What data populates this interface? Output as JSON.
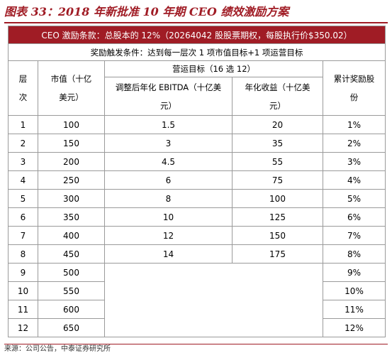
{
  "title": "图表 33：2018 年新批准 10 年期 CEO 绩效激励方案",
  "terms": "CEO 激励条款：总股本的 12%（20264042 股股票期权，每股执行价$350.02）",
  "trigger": "奖励触发条件：达到每一层次 1 项市值目标+1 项运营目标",
  "headers": {
    "level": "层次",
    "market_cap": "市值（十亿美元）",
    "ops": "营运目标（16 选 12）",
    "ebitda": "调整后年化 EBITDA（十亿美元）",
    "revenue": "年化收益（十亿美元）",
    "reward": "累计奖励股份"
  },
  "rows": [
    {
      "level": "1",
      "cap": "100",
      "ebitda": "1.5",
      "revenue": "20",
      "reward": "1%"
    },
    {
      "level": "2",
      "cap": "150",
      "ebitda": "3",
      "revenue": "35",
      "reward": "2%"
    },
    {
      "level": "3",
      "cap": "200",
      "ebitda": "4.5",
      "revenue": "55",
      "reward": "3%"
    },
    {
      "level": "4",
      "cap": "250",
      "ebitda": "6",
      "revenue": "75",
      "reward": "4%"
    },
    {
      "level": "5",
      "cap": "300",
      "ebitda": "8",
      "revenue": "100",
      "reward": "5%"
    },
    {
      "level": "6",
      "cap": "350",
      "ebitda": "10",
      "revenue": "125",
      "reward": "6%"
    },
    {
      "level": "7",
      "cap": "400",
      "ebitda": "12",
      "revenue": "150",
      "reward": "7%"
    },
    {
      "level": "8",
      "cap": "450",
      "ebitda": "14",
      "revenue": "175",
      "reward": "8%"
    },
    {
      "level": "9",
      "cap": "500",
      "ebitda": "",
      "revenue": "",
      "reward": "9%"
    },
    {
      "level": "10",
      "cap": "550",
      "ebitda": "",
      "revenue": "",
      "reward": "10%"
    },
    {
      "level": "11",
      "cap": "600",
      "ebitda": "",
      "revenue": "",
      "reward": "11%"
    },
    {
      "level": "12",
      "cap": "650",
      "ebitda": "",
      "revenue": "",
      "reward": "12%"
    }
  ],
  "source": "来源：公司公告，中泰证券研究所"
}
